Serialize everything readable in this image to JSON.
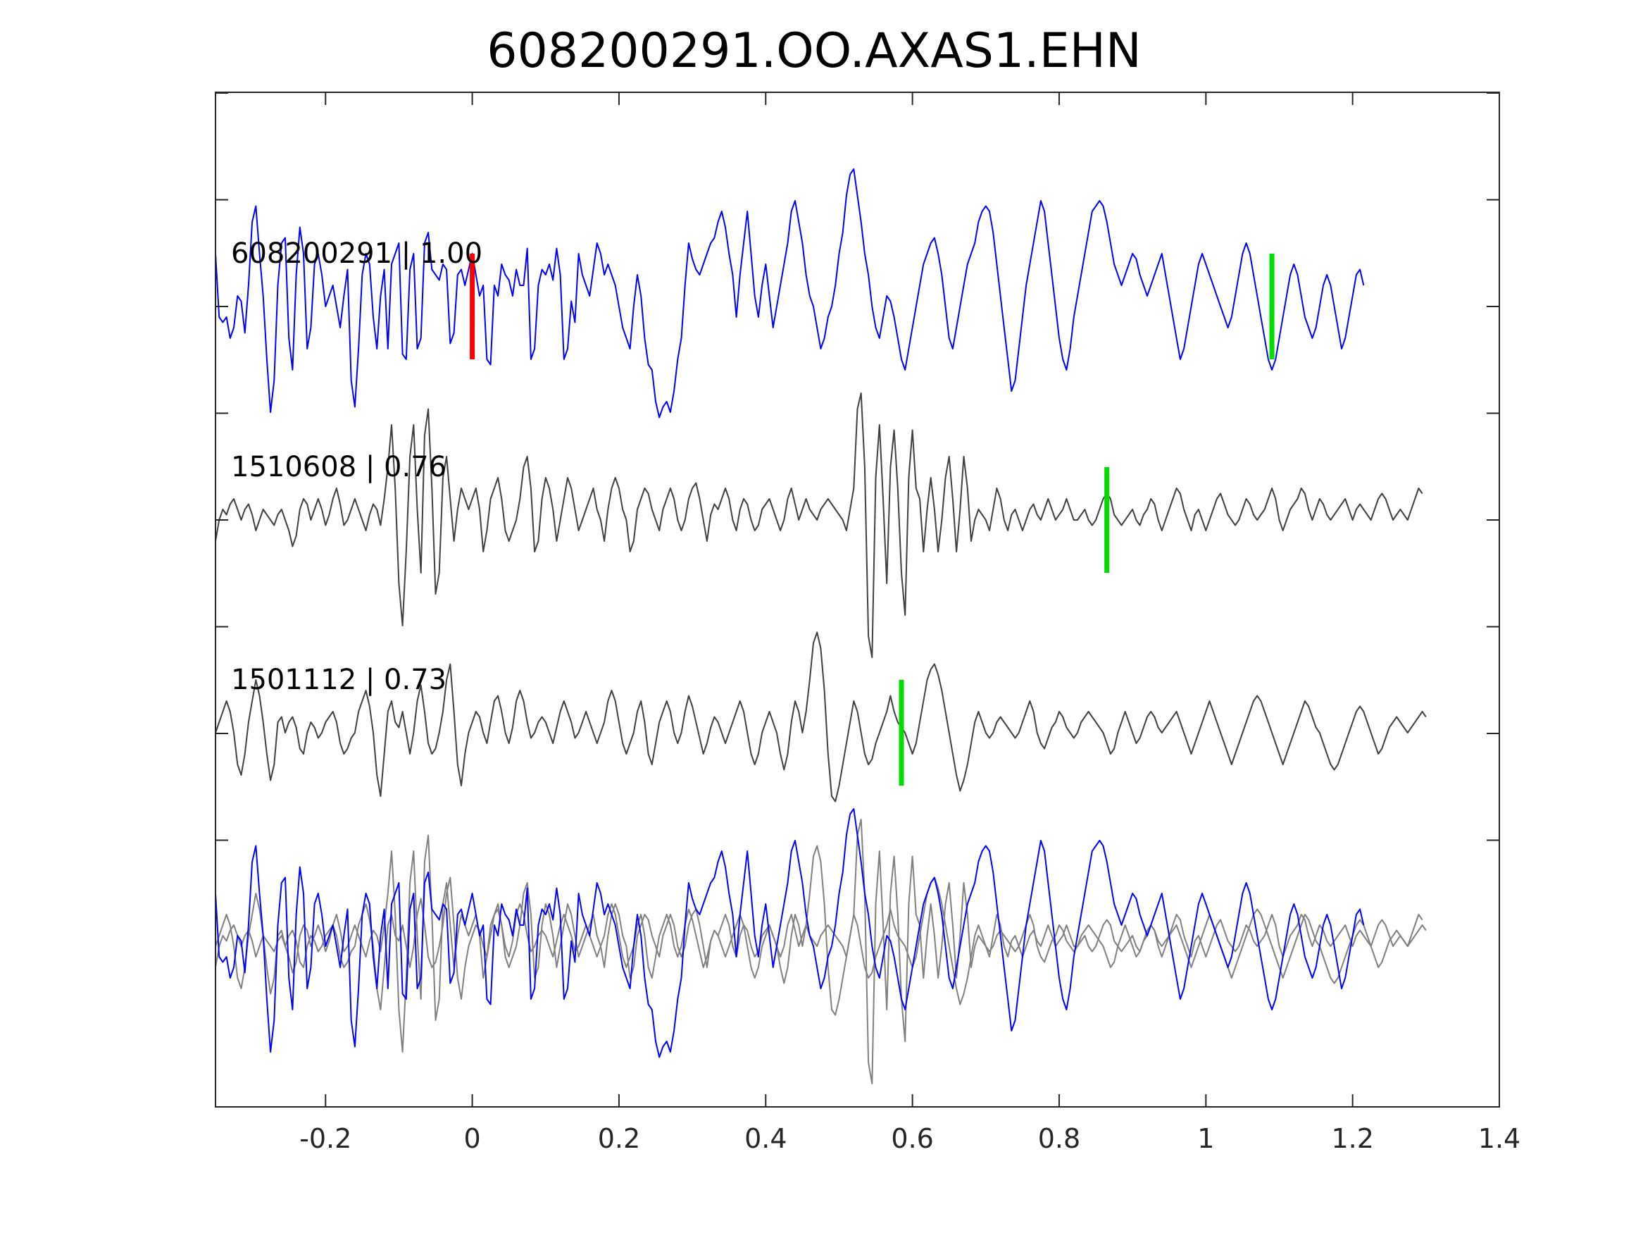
{
  "chart_data": {
    "type": "line",
    "title": "608200291.OO.AXAS1.EHN",
    "xlabel": "",
    "ylabel": "",
    "xlim": [
      -0.35,
      1.4
    ],
    "x_ticks": [
      -0.2,
      0,
      0.2,
      0.4,
      0.6,
      0.8,
      1,
      1.2,
      1.4
    ],
    "x_tick_labels": [
      "-0.2",
      "0",
      "0.2",
      "0.4",
      "0.6",
      "0.8",
      "1",
      "1.2",
      "1.4"
    ],
    "y_tick_count": 9,
    "y_tick_labels": [],
    "sample_interval": 0.005,
    "colors": {
      "primary_trace": "#0000ff",
      "secondary_trace": "#404040",
      "overlay_secondary": "#808080",
      "reference_pick": "#ff0000",
      "aligned_pick": "#00dd00"
    },
    "panels": [
      {
        "label": "608200291 | 1.00",
        "trace": "608200291",
        "correlation": 1.0,
        "color": "#0000ff",
        "picks": [
          {
            "time": 0.0,
            "kind": "reference",
            "color": "#ff0000"
          },
          {
            "time": 1.09,
            "kind": "aligned",
            "color": "#00dd00"
          }
        ]
      },
      {
        "label": "1510608 | 0.76",
        "trace": "1510608",
        "correlation": 0.76,
        "color": "#404040",
        "picks": [
          {
            "time": 0.865,
            "kind": "aligned",
            "color": "#00dd00"
          }
        ]
      },
      {
        "label": "1501112 | 0.73",
        "trace": "1501112",
        "correlation": 0.73,
        "color": "#404040",
        "picks": [
          {
            "time": 0.585,
            "kind": "aligned",
            "color": "#00dd00"
          }
        ]
      },
      {
        "label": "",
        "trace": "overlay",
        "overlay": [
          "1510608",
          "1501112",
          "608200291"
        ],
        "colors": [
          "#808080",
          "#808080",
          "#0000ff"
        ],
        "picks": []
      }
    ],
    "series": [
      {
        "name": "608200291",
        "t0": -0.35,
        "values": [
          0.5,
          -0.1,
          -0.15,
          -0.1,
          -0.3,
          -0.2,
          0.1,
          0.05,
          -0.25,
          0.2,
          0.8,
          0.95,
          0.5,
          0.1,
          -0.5,
          -1.0,
          -0.7,
          0.2,
          0.6,
          0.65,
          -0.3,
          -0.6,
          0.3,
          0.75,
          0.5,
          -0.4,
          -0.2,
          0.4,
          0.5,
          0.3,
          0.0,
          0.1,
          0.2,
          0.0,
          -0.2,
          0.1,
          0.35,
          -0.7,
          -0.95,
          -0.4,
          0.3,
          0.5,
          0.4,
          -0.1,
          -0.4,
          0.1,
          0.35,
          -0.4,
          0.4,
          0.5,
          0.6,
          -0.45,
          -0.5,
          0.35,
          0.5,
          -0.4,
          -0.3,
          0.6,
          0.7,
          0.35,
          0.3,
          0.25,
          0.4,
          0.35,
          -0.35,
          -0.25,
          0.3,
          0.35,
          0.2,
          0.35,
          0.5,
          0.3,
          0.1,
          0.2,
          -0.5,
          -0.55,
          0.2,
          0.1,
          0.4,
          0.3,
          0.25,
          0.1,
          0.35,
          0.2,
          0.2,
          0.55,
          -0.5,
          -0.4,
          0.2,
          0.35,
          0.3,
          0.4,
          0.25,
          0.55,
          0.3,
          -0.5,
          -0.4,
          0.05,
          -0.15,
          0.5,
          0.3,
          0.2,
          0.1,
          0.35,
          0.6,
          0.5,
          0.3,
          0.4,
          0.3,
          0.2,
          0.0,
          -0.2,
          -0.3,
          -0.4,
          0.0,
          0.3,
          0.1,
          -0.3,
          -0.55,
          -0.6,
          -0.9,
          -1.05,
          -0.95,
          -0.9,
          -1.0,
          -0.8,
          -0.5,
          -0.3,
          0.2,
          0.6,
          0.45,
          0.35,
          0.3,
          0.4,
          0.5,
          0.6,
          0.65,
          0.8,
          0.9,
          0.75,
          0.5,
          0.3,
          -0.1,
          0.3,
          0.6,
          0.9,
          0.5,
          0.1,
          -0.1,
          0.2,
          0.4,
          0.1,
          -0.2,
          0.0,
          0.2,
          0.4,
          0.6,
          0.9,
          1.0,
          0.8,
          0.6,
          0.3,
          0.1,
          0.0,
          -0.2,
          -0.4,
          -0.3,
          -0.1,
          0.0,
          0.2,
          0.5,
          0.7,
          1.05,
          1.25,
          1.3,
          1.05,
          0.8,
          0.5,
          0.3,
          0.0,
          -0.2,
          -0.3,
          -0.1,
          0.1,
          0.05,
          -0.1,
          -0.3,
          -0.5,
          -0.6,
          -0.4,
          -0.2,
          0.0,
          0.2,
          0.4,
          0.5,
          0.6,
          0.65,
          0.5,
          0.3,
          0.0,
          -0.3,
          -0.4,
          -0.2,
          0.0,
          0.2,
          0.4,
          0.5,
          0.6,
          0.8,
          0.9,
          0.95,
          0.9,
          0.7,
          0.4,
          0.1,
          -0.2,
          -0.5,
          -0.8,
          -0.7,
          -0.4,
          -0.1,
          0.2,
          0.4,
          0.6,
          0.8,
          1.0,
          0.9,
          0.6,
          0.3,
          0.0,
          -0.3,
          -0.5,
          -0.6,
          -0.4,
          -0.1,
          0.1,
          0.3,
          0.5,
          0.7,
          0.9,
          0.95,
          1.0,
          0.95,
          0.8,
          0.6,
          0.4,
          0.3,
          0.2,
          0.3,
          0.4,
          0.5,
          0.45,
          0.3,
          0.2,
          0.1,
          0.2,
          0.3,
          0.4,
          0.5,
          0.3,
          0.1,
          -0.1,
          -0.3,
          -0.5,
          -0.4,
          -0.2,
          0.0,
          0.2,
          0.4,
          0.5,
          0.4,
          0.3,
          0.2,
          0.1,
          0.0,
          -0.1,
          -0.2,
          -0.1,
          0.1,
          0.3,
          0.5,
          0.6,
          0.5,
          0.3,
          0.1,
          -0.1,
          -0.3,
          -0.5,
          -0.6,
          -0.5,
          -0.3,
          -0.1,
          0.1,
          0.3,
          0.4,
          0.3,
          0.1,
          -0.1,
          -0.2,
          -0.3,
          -0.2,
          0.0,
          0.2,
          0.3,
          0.2,
          0.0,
          -0.2,
          -0.4,
          -0.3,
          -0.1,
          0.1,
          0.3,
          0.35,
          0.2
        ],
        "color": "#0000ff"
      },
      {
        "name": "1510608",
        "t0": -0.35,
        "values": [
          -0.2,
          0.0,
          0.1,
          0.05,
          0.15,
          0.2,
          0.1,
          0.0,
          0.1,
          0.15,
          0.05,
          -0.1,
          0.0,
          0.1,
          0.05,
          0.0,
          -0.05,
          0.05,
          0.1,
          0.0,
          -0.1,
          -0.25,
          -0.15,
          0.1,
          0.2,
          0.15,
          0.0,
          0.1,
          0.2,
          0.1,
          -0.05,
          0.05,
          0.2,
          0.3,
          0.15,
          -0.05,
          0.0,
          0.1,
          0.2,
          0.1,
          0.0,
          -0.1,
          0.05,
          0.15,
          0.1,
          -0.05,
          0.2,
          0.5,
          0.9,
          0.3,
          -0.6,
          -1.0,
          -0.3,
          0.6,
          0.9,
          0.1,
          -0.5,
          0.8,
          1.05,
          0.3,
          -0.7,
          -0.5,
          0.4,
          0.6,
          0.2,
          -0.2,
          0.1,
          0.3,
          0.2,
          0.1,
          0.2,
          0.3,
          0.1,
          -0.3,
          -0.1,
          0.2,
          0.3,
          0.4,
          0.2,
          -0.1,
          -0.2,
          -0.1,
          0.0,
          0.2,
          0.5,
          0.6,
          0.3,
          -0.3,
          -0.2,
          0.2,
          0.4,
          0.3,
          0.1,
          -0.2,
          0.0,
          0.2,
          0.4,
          0.3,
          0.1,
          -0.1,
          0.0,
          0.1,
          0.2,
          0.3,
          0.1,
          0.0,
          -0.2,
          0.1,
          0.3,
          0.4,
          0.3,
          0.1,
          0.0,
          -0.3,
          -0.2,
          0.1,
          0.2,
          0.3,
          0.25,
          0.1,
          0.0,
          -0.1,
          0.1,
          0.2,
          0.3,
          0.2,
          0.0,
          -0.1,
          0.0,
          0.2,
          0.3,
          0.35,
          0.2,
          0.0,
          -0.2,
          0.05,
          0.15,
          0.1,
          0.2,
          0.3,
          0.2,
          0.0,
          -0.1,
          0.1,
          0.2,
          0.15,
          0.0,
          -0.1,
          -0.05,
          0.1,
          0.15,
          0.2,
          0.1,
          0.0,
          -0.1,
          0.0,
          0.2,
          0.3,
          0.15,
          0.0,
          0.1,
          0.2,
          0.1,
          0.05,
          0.0,
          0.1,
          0.15,
          0.2,
          0.15,
          0.1,
          0.05,
          0.0,
          -0.1,
          0.1,
          0.3,
          1.05,
          1.2,
          0.5,
          -1.1,
          -1.3,
          0.4,
          0.9,
          0.2,
          -0.6,
          0.5,
          0.85,
          0.3,
          -0.5,
          -0.9,
          0.4,
          0.85,
          0.3,
          0.2,
          -0.3,
          0.1,
          0.4,
          0.1,
          -0.3,
          0.0,
          0.4,
          0.6,
          0.2,
          -0.3,
          0.1,
          0.6,
          0.3,
          -0.2,
          0.0,
          0.1,
          0.05,
          0.0,
          -0.1,
          0.1,
          0.3,
          0.2,
          0.0,
          -0.1,
          0.05,
          0.1,
          0.0,
          -0.1,
          0.0,
          0.1,
          0.15,
          0.05,
          0.0,
          0.1,
          0.2,
          0.1,
          0.0,
          0.05,
          0.1,
          0.2,
          0.1,
          0.0,
          0.0,
          0.05,
          0.1,
          0.0,
          -0.05,
          0.0,
          0.1,
          0.2,
          0.25,
          0.2,
          0.05,
          0.0,
          -0.05,
          0.0,
          0.05,
          0.1,
          0.0,
          -0.05,
          0.05,
          0.1,
          0.2,
          0.15,
          0.0,
          -0.1,
          0.0,
          0.1,
          0.2,
          0.3,
          0.25,
          0.1,
          0.0,
          -0.1,
          0.05,
          0.1,
          0.0,
          -0.1,
          0.0,
          0.1,
          0.2,
          0.25,
          0.15,
          0.05,
          0.0,
          -0.05,
          0.0,
          0.1,
          0.2,
          0.15,
          0.05,
          0.0,
          0.05,
          0.1,
          0.2,
          0.3,
          0.2,
          0.0,
          -0.1,
          0.0,
          0.1,
          0.15,
          0.2,
          0.3,
          0.25,
          0.1,
          0.0,
          0.1,
          0.2,
          0.15,
          0.05,
          0.0,
          0.05,
          0.1,
          0.15,
          0.2,
          0.1,
          0.0,
          0.1,
          0.15,
          0.1,
          0.05,
          0.0,
          0.1,
          0.2,
          0.25,
          0.2,
          0.1,
          0.0,
          0.05,
          0.1,
          0.05,
          0.0,
          0.1,
          0.2,
          0.3,
          0.25
        ],
        "color": "#404040"
      },
      {
        "name": "1501112",
        "t0": -0.35,
        "values": [
          0.0,
          0.1,
          0.2,
          0.3,
          0.2,
          0.0,
          -0.3,
          -0.4,
          -0.2,
          0.1,
          0.3,
          0.5,
          0.35,
          0.1,
          -0.2,
          -0.45,
          -0.3,
          0.1,
          0.15,
          0.0,
          0.1,
          0.15,
          0.05,
          -0.15,
          -0.2,
          0.0,
          0.1,
          0.05,
          -0.05,
          0.0,
          0.1,
          0.15,
          0.2,
          0.1,
          -0.1,
          -0.2,
          -0.15,
          -0.05,
          0.0,
          0.2,
          0.3,
          0.4,
          0.25,
          0.0,
          -0.4,
          -0.6,
          -0.2,
          0.2,
          0.3,
          0.1,
          0.05,
          0.2,
          0.0,
          -0.2,
          0.0,
          0.3,
          0.45,
          0.2,
          -0.1,
          -0.2,
          -0.15,
          0.0,
          0.2,
          0.5,
          0.65,
          0.2,
          -0.3,
          -0.5,
          -0.2,
          0.0,
          0.1,
          0.2,
          0.15,
          0.0,
          -0.1,
          0.1,
          0.3,
          0.35,
          0.2,
          0.0,
          -0.1,
          0.05,
          0.3,
          0.4,
          0.3,
          0.1,
          -0.05,
          0.0,
          0.1,
          0.15,
          0.1,
          0.0,
          -0.1,
          0.05,
          0.2,
          0.3,
          0.2,
          0.1,
          -0.05,
          0.0,
          0.1,
          0.2,
          0.1,
          0.0,
          -0.1,
          0.0,
          0.1,
          0.3,
          0.4,
          0.3,
          0.1,
          -0.1,
          -0.2,
          -0.1,
          0.0,
          0.2,
          0.3,
          0.1,
          -0.2,
          -0.3,
          -0.1,
          0.1,
          0.2,
          0.3,
          0.2,
          0.0,
          -0.1,
          0.0,
          0.2,
          0.35,
          0.25,
          0.1,
          -0.05,
          -0.2,
          -0.1,
          0.05,
          0.15,
          0.1,
          0.0,
          -0.1,
          0.0,
          0.1,
          0.2,
          0.3,
          0.2,
          0.0,
          -0.2,
          -0.3,
          -0.2,
          0.0,
          0.1,
          0.2,
          0.1,
          0.0,
          -0.2,
          -0.35,
          -0.2,
          0.1,
          0.3,
          0.2,
          0.0,
          0.2,
          0.5,
          0.85,
          0.95,
          0.8,
          0.4,
          -0.2,
          -0.6,
          -0.65,
          -0.5,
          -0.3,
          -0.1,
          0.1,
          0.3,
          0.2,
          0.0,
          -0.2,
          -0.3,
          -0.25,
          -0.1,
          0.0,
          0.1,
          0.2,
          0.35,
          0.2,
          0.1,
          0.05,
          0.0,
          -0.1,
          -0.2,
          -0.1,
          0.1,
          0.3,
          0.5,
          0.6,
          0.65,
          0.55,
          0.4,
          0.2,
          0.0,
          -0.2,
          -0.4,
          -0.55,
          -0.45,
          -0.3,
          -0.1,
          0.1,
          0.2,
          0.1,
          0.0,
          -0.05,
          0.0,
          0.1,
          0.15,
          0.1,
          0.05,
          0.0,
          -0.05,
          0.0,
          0.1,
          0.2,
          0.3,
          0.2,
          0.0,
          -0.1,
          -0.15,
          -0.05,
          0.05,
          0.1,
          0.2,
          0.15,
          0.05,
          0.0,
          -0.05,
          0.0,
          0.1,
          0.15,
          0.2,
          0.15,
          0.1,
          0.05,
          0.0,
          -0.1,
          -0.2,
          -0.15,
          0.0,
          0.1,
          0.2,
          0.1,
          0.0,
          -0.1,
          -0.05,
          0.05,
          0.15,
          0.2,
          0.15,
          0.05,
          0.0,
          0.05,
          0.1,
          0.15,
          0.2,
          0.1,
          0.0,
          -0.1,
          -0.2,
          -0.1,
          0.0,
          0.1,
          0.2,
          0.3,
          0.2,
          0.1,
          0.0,
          -0.1,
          -0.2,
          -0.3,
          -0.2,
          -0.1,
          0.0,
          0.1,
          0.2,
          0.3,
          0.35,
          0.3,
          0.2,
          0.1,
          0.0,
          -0.1,
          -0.2,
          -0.3,
          -0.2,
          -0.1,
          0.0,
          0.1,
          0.2,
          0.3,
          0.25,
          0.15,
          0.05,
          0.0,
          -0.1,
          -0.2,
          -0.3,
          -0.35,
          -0.3,
          -0.2,
          -0.1,
          0.0,
          0.1,
          0.2,
          0.25,
          0.2,
          0.1,
          0.0,
          -0.1,
          -0.2,
          -0.15,
          -0.05,
          0.05,
          0.1,
          0.15,
          0.1,
          0.05,
          0.0,
          0.05,
          0.1,
          0.15,
          0.2,
          0.15
        ],
        "color": "#404040"
      }
    ]
  }
}
